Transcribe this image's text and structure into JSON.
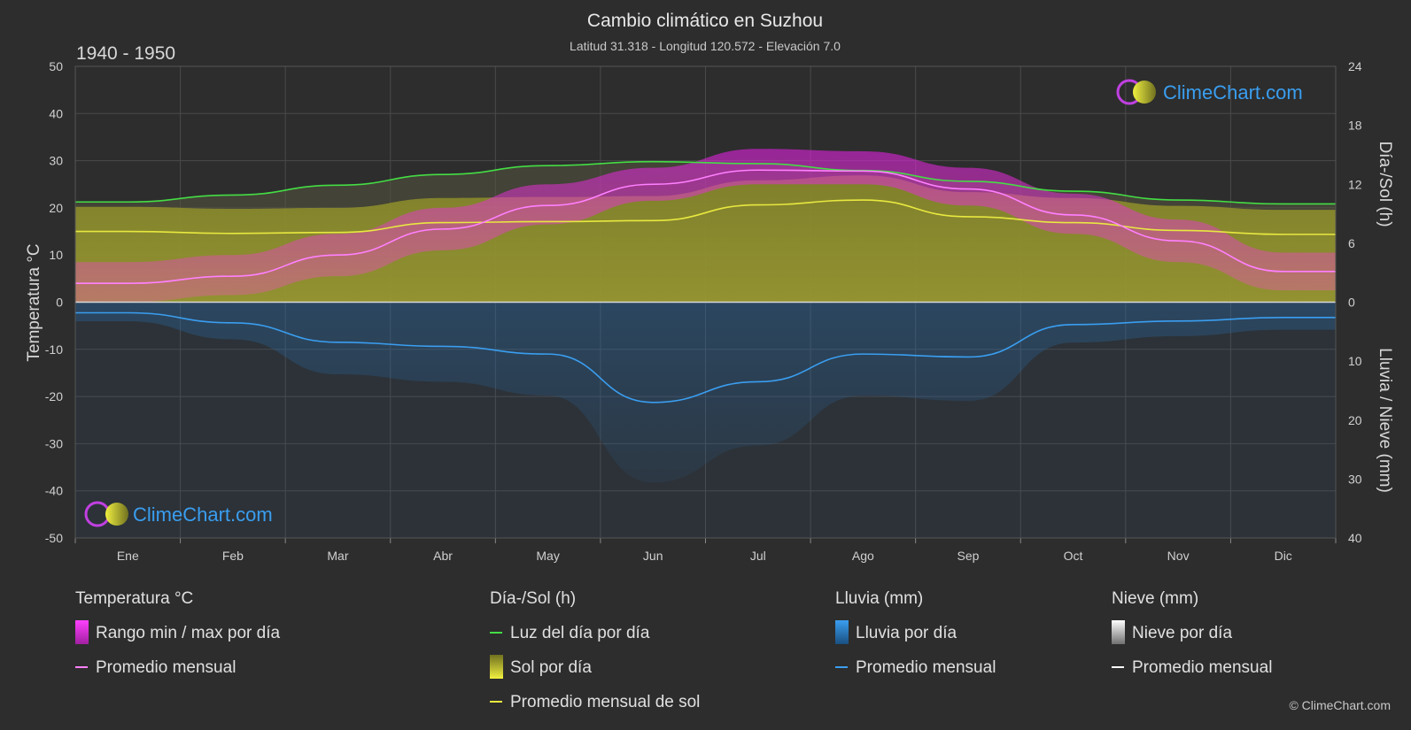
{
  "header": {
    "title": "Cambio climático en Suzhou",
    "subtitle": "Latitud 31.318 - Longitud 120.572 - Elevación 7.0",
    "period": "1940 - 1950"
  },
  "watermark": {
    "text": "ClimeChart.com"
  },
  "copyright": "© ClimeChart.com",
  "colors": {
    "background": "#2d2d2d",
    "temp_range": "#e020e0",
    "temp_avg": "#ff80ff",
    "daylight": "#44dd44",
    "sun": "#c8c83a",
    "sun_avg": "#e8e840",
    "rain": "#2a7fd4",
    "rain_avg": "#3a9ef0",
    "snow": "#ffffff",
    "brand": "#3a9ef0"
  },
  "chart_data": {
    "type": "area",
    "categories": [
      "Ene",
      "Feb",
      "Mar",
      "Abr",
      "May",
      "Jun",
      "Jul",
      "Ago",
      "Sep",
      "Oct",
      "Nov",
      "Dic"
    ],
    "axes": {
      "left": {
        "label": "Temperatura °C",
        "min": -50,
        "max": 50,
        "ticks": [
          "50",
          "40",
          "30",
          "20",
          "10",
          "0",
          "-10",
          "-20",
          "-30",
          "-40",
          "-50"
        ]
      },
      "right_top": {
        "label": "Día-/Sol (h)",
        "min": 0,
        "max": 24,
        "ticks": [
          "24",
          "18",
          "12",
          "6",
          "0"
        ]
      },
      "right_bottom": {
        "label": "Lluvia / Nieve (mm)",
        "min": 0,
        "max": 40,
        "ticks": [
          "0",
          "10",
          "20",
          "30",
          "40"
        ]
      }
    },
    "grid": true,
    "series": [
      {
        "name": "Luz del día por día",
        "unit": "h",
        "values": [
          10.2,
          10.9,
          11.9,
          13.0,
          13.9,
          14.3,
          14.1,
          13.4,
          12.3,
          11.3,
          10.4,
          10.0
        ]
      },
      {
        "name": "Promedio mensual de sol",
        "unit": "h",
        "values": [
          7.2,
          7.0,
          7.1,
          8.1,
          8.2,
          8.3,
          9.9,
          10.4,
          8.7,
          8.1,
          7.3,
          6.9
        ]
      },
      {
        "name": "Promedio mensual",
        "group": "Temperatura °C",
        "unit": "°C",
        "values": [
          4,
          5.5,
          10,
          15.5,
          20.5,
          25,
          28,
          27.8,
          24,
          18.5,
          13,
          6.5
        ]
      },
      {
        "name": "Rango min / max por día",
        "unit": "°C",
        "min": [
          0,
          1.5,
          5.5,
          11,
          16.5,
          21.5,
          25,
          25,
          20.5,
          14.5,
          8.5,
          2.5
        ],
        "max": [
          8.5,
          10,
          14.5,
          20,
          25,
          28.5,
          32.5,
          32,
          28.5,
          23,
          17.5,
          10.5
        ]
      },
      {
        "name": "Promedio mensual",
        "group": "Lluvia (mm)",
        "unit": "mm",
        "values": [
          1.8,
          3.5,
          6.8,
          7.5,
          8.8,
          17,
          13.5,
          8.8,
          9.3,
          3.8,
          3.2,
          2.6
        ]
      }
    ]
  },
  "legend": {
    "groups": [
      {
        "title": "Temperatura °C",
        "items": [
          {
            "label": "Rango min / max por día",
            "swatch": "range"
          },
          {
            "label": "Promedio mensual",
            "swatch": "line-temp"
          }
        ]
      },
      {
        "title": "Día-/Sol (h)",
        "items": [
          {
            "label": "Luz del día por día",
            "swatch": "line-daylight"
          },
          {
            "label": "Sol por día",
            "swatch": "sun"
          },
          {
            "label": "Promedio mensual de sol",
            "swatch": "line-sun"
          }
        ]
      },
      {
        "title": "Lluvia (mm)",
        "items": [
          {
            "label": "Lluvia por día",
            "swatch": "rain"
          },
          {
            "label": "Promedio mensual",
            "swatch": "line-rain"
          }
        ]
      },
      {
        "title": "Nieve (mm)",
        "items": [
          {
            "label": "Nieve por día",
            "swatch": "snow"
          },
          {
            "label": "Promedio mensual",
            "swatch": "line-snow"
          }
        ]
      }
    ]
  }
}
